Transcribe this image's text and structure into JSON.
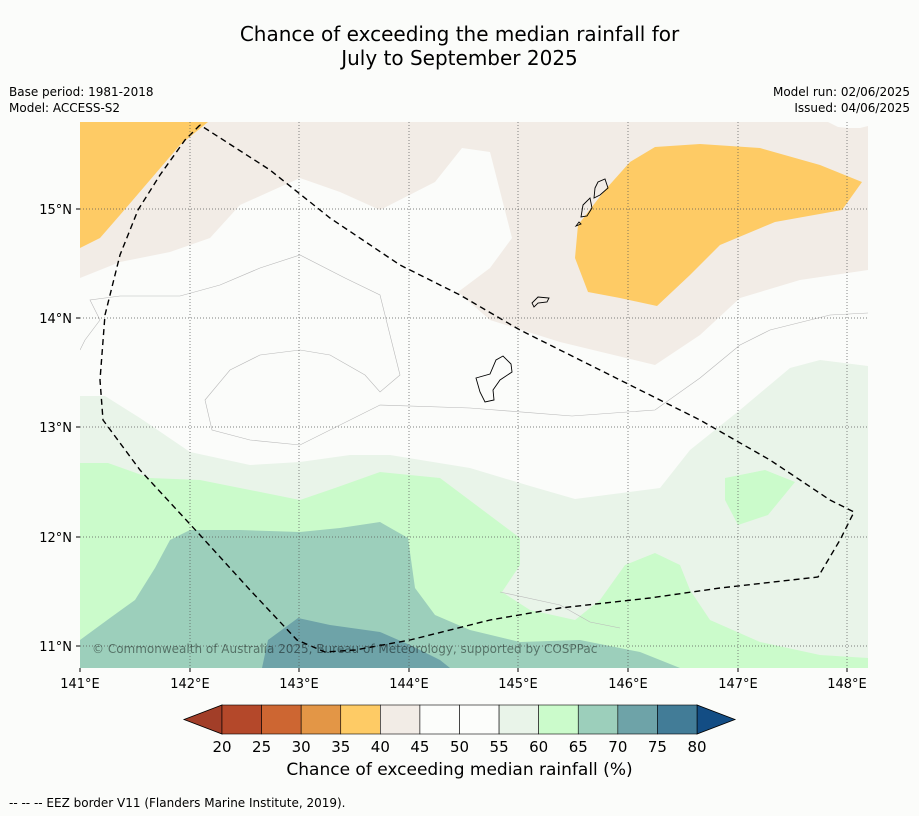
{
  "title": {
    "line1": "Chance of exceeding the median rainfall for",
    "line2": "July to September 2025"
  },
  "meta": {
    "base_period": "Base period: 1981-2018",
    "model": "Model: ACCESS-S2",
    "model_run": "Model run: 02/06/2025",
    "issued": "Issued: 04/06/2025"
  },
  "map": {
    "lat_labels": [
      "15°N",
      "14°N",
      "13°N",
      "12°N",
      "11°N"
    ],
    "lon_labels": [
      "141°E",
      "142°E",
      "143°E",
      "144°E",
      "145°E",
      "146°E",
      "147°E",
      "148°E"
    ],
    "copyright": "© Commonwealth of Australia 2025, Bureau of Meteorology, supported by COSPPac",
    "colors": {
      "35-40": "#fecb65",
      "40-45": "#f2ece6",
      "45-55": "#fbfcfa",
      "55-60": "#e9f4e9",
      "60-65": "#cbfbcb",
      "65-70": "#9ccfbb",
      "70-75": "#6ea3a8"
    }
  },
  "colorbar": {
    "ticks": [
      "20",
      "25",
      "30",
      "35",
      "40",
      "45",
      "50",
      "55",
      "60",
      "65",
      "70",
      "75",
      "80"
    ],
    "colors": [
      "#b4482a",
      "#cd6632",
      "#e39646",
      "#fecb65",
      "#f2ece6",
      "#fcfdfb",
      "#fcfdfb",
      "#e9f4e9",
      "#cbfbcb",
      "#9ccfbb",
      "#6ea3a8",
      "#427c97"
    ],
    "under_color": "#a23e28",
    "over_color": "#134d84",
    "label": "Chance of exceeding median rainfall (%)"
  },
  "footnote": "--  --  -- EEZ border V11 (Flanders Marine Institute, 2019)."
}
